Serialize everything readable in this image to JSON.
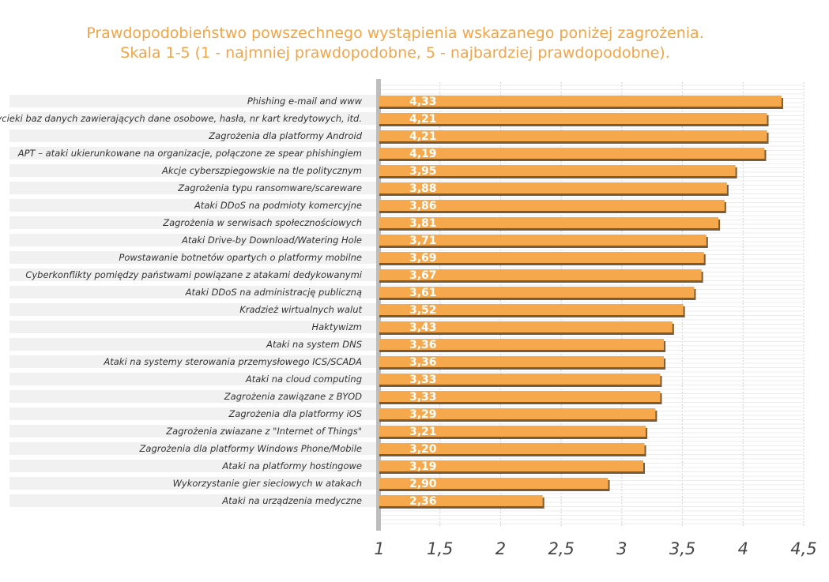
{
  "chart_data": {
    "type": "bar",
    "orientation": "horizontal",
    "title": "Prawdopodobieństwo powszechnego wystąpienia wskazanego poniżej zagrożenia.",
    "subtitle": "Skala 1-5 (1 - najmniej prawdopodobne, 5 - najbardziej prawdopodobne).",
    "xlim": [
      1,
      4.5
    ],
    "xticks": [
      "1",
      "1,5",
      "2",
      "2,5",
      "3",
      "3,5",
      "4",
      "4,5"
    ],
    "xtick_values": [
      1,
      1.5,
      2,
      2.5,
      3,
      3.5,
      4,
      4.5
    ],
    "grid": true,
    "colors": {
      "bar": "#f6a84c",
      "bar_edge": "#6b4a22",
      "title": "#f2a548",
      "row_band": "#e6e6e6",
      "label": "#333333"
    },
    "categories": [
      "Phishing e-mail and www",
      "Wycieki baz danych zawierających dane osobowe, hasła, nr kart kredytowych, itd.",
      "Zagrożenia dla platformy Android",
      "APT – ataki ukierunkowane na organizacje, połączone ze spear phishingiem",
      "Akcje cyberszpiegowskie na tle politycznym",
      "Zagrożenia typu ransomware/scareware",
      "Ataki DDoS na podmioty komercyjne",
      "Zagrożenia w serwisach społecznościowych",
      "Ataki Drive-by Download/Watering Hole",
      "Powstawanie botnetów opartych o platformy mobilne",
      "Cyberkonflikty pomiędzy państwami powiązane z atakami dedykowanymi",
      "Ataki DDoS na administrację publiczną",
      "Kradzież wirtualnych walut",
      "Haktywizm",
      "Ataki na system DNS",
      "Ataki na systemy sterowania przemysłowego ICS/SCADA",
      "Ataki na cloud computing",
      "Zagrożenia zawiązane z BYOD",
      "Zagrożenia dla platformy iOS",
      "Zagrożenia zwiazane z \"Internet of Things\"",
      "Zagrożenia dla platformy Windows Phone/Mobile",
      "Ataki na platformy hostingowe",
      "Wykorzystanie gier sieciowych w atakach",
      "Ataki na urządzenia medyczne"
    ],
    "values": [
      4.33,
      4.21,
      4.21,
      4.19,
      3.95,
      3.88,
      3.86,
      3.81,
      3.71,
      3.69,
      3.67,
      3.61,
      3.52,
      3.43,
      3.36,
      3.36,
      3.33,
      3.33,
      3.29,
      3.21,
      3.2,
      3.19,
      2.9,
      2.36
    ],
    "value_labels": [
      "4,33",
      "4,21",
      "4,21",
      "4,19",
      "3,95",
      "3,88",
      "3,86",
      "3,81",
      "3,71",
      "3,69",
      "3,67",
      "3,61",
      "3,52",
      "3,43",
      "3,36",
      "3,36",
      "3,33",
      "3,33",
      "3,29",
      "3,21",
      "3,20",
      "3,19",
      "2,90",
      "2,36"
    ]
  }
}
